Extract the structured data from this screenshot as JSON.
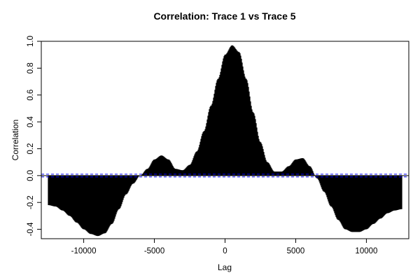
{
  "chart_data": {
    "type": "line",
    "title": "Correlation: Trace 1 vs Trace 5",
    "xlabel": "Lag",
    "ylabel": "Correlation",
    "xlim": [
      -13000,
      13000
    ],
    "ylim": [
      -0.47,
      1.0
    ],
    "x_ticks": [
      -10000,
      -5000,
      0,
      5000,
      10000
    ],
    "x_tick_labels": [
      "-10000",
      "-5000",
      "0",
      "5000",
      "10000"
    ],
    "y_ticks": [
      -0.4,
      -0.2,
      0.0,
      0.2,
      0.4,
      0.6,
      0.8,
      1.0
    ],
    "y_tick_labels": [
      "-0.4",
      "-0.2",
      "0.0",
      "0.2",
      "0.4",
      "0.6",
      "0.8",
      "1.0"
    ],
    "style": "histogram-lines",
    "baseline": 0,
    "grid": false,
    "series": [
      {
        "color": "#000000",
        "x": [
          -12500,
          -12000,
          -11500,
          -11000,
          -10500,
          -10000,
          -9500,
          -9000,
          -8500,
          -8000,
          -7500,
          -7000,
          -6500,
          -6000,
          -5500,
          -5000,
          -4500,
          -4000,
          -3500,
          -3000,
          -2500,
          -2000,
          -1500,
          -1000,
          -500,
          0,
          500,
          1000,
          1500,
          2000,
          2500,
          3000,
          3500,
          4000,
          4500,
          5000,
          5500,
          6000,
          6500,
          7000,
          7500,
          8000,
          8500,
          9000,
          9500,
          10000,
          10500,
          11000,
          11500,
          12000,
          12500
        ],
        "y": [
          -0.22,
          -0.23,
          -0.26,
          -0.3,
          -0.35,
          -0.4,
          -0.435,
          -0.45,
          -0.43,
          -0.36,
          -0.25,
          -0.14,
          -0.06,
          0.0,
          0.05,
          0.12,
          0.15,
          0.12,
          0.05,
          0.04,
          0.08,
          0.18,
          0.33,
          0.52,
          0.72,
          0.9,
          0.97,
          0.92,
          0.72,
          0.47,
          0.25,
          0.1,
          0.03,
          0.03,
          0.07,
          0.12,
          0.13,
          0.07,
          -0.02,
          -0.12,
          -0.23,
          -0.33,
          -0.4,
          -0.42,
          -0.42,
          -0.4,
          -0.36,
          -0.32,
          -0.28,
          -0.26,
          -0.25
        ]
      }
    ],
    "reference_lines": [
      {
        "y": 0.01,
        "color": "#0000ff",
        "style": "dashed"
      },
      {
        "y": -0.01,
        "color": "#0000ff",
        "style": "dashed"
      }
    ]
  }
}
